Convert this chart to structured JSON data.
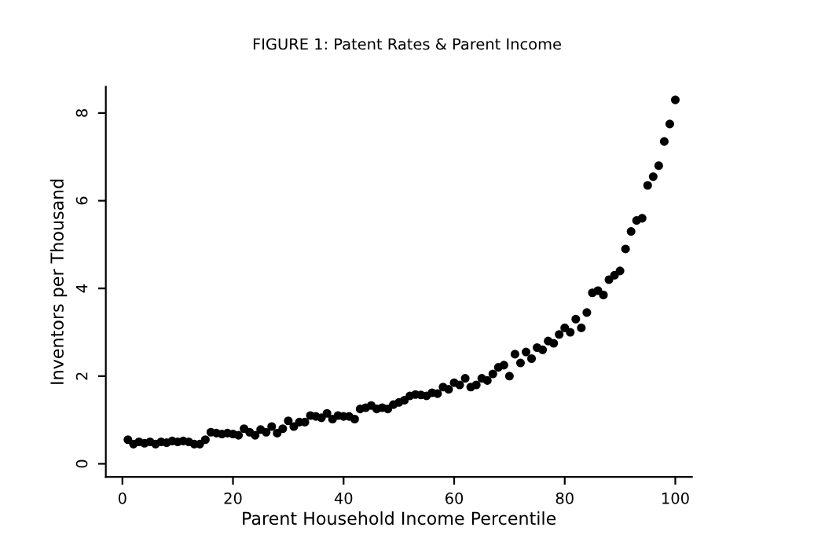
{
  "chart_data": {
    "type": "scatter",
    "title": "FIGURE 1: Patent Rates & Parent Income",
    "xlabel": "Parent Household Income Percentile",
    "ylabel": "Inventors per Thousand",
    "x": [
      1,
      2,
      3,
      4,
      5,
      6,
      7,
      8,
      9,
      10,
      11,
      12,
      13,
      14,
      15,
      16,
      17,
      18,
      19,
      20,
      21,
      22,
      23,
      24,
      25,
      26,
      27,
      28,
      29,
      30,
      31,
      32,
      33,
      34,
      35,
      36,
      37,
      38,
      39,
      40,
      41,
      42,
      43,
      44,
      45,
      46,
      47,
      48,
      49,
      50,
      51,
      52,
      53,
      54,
      55,
      56,
      57,
      58,
      59,
      60,
      61,
      62,
      63,
      64,
      65,
      66,
      67,
      68,
      69,
      70,
      71,
      72,
      73,
      74,
      75,
      76,
      77,
      78,
      79,
      80,
      81,
      82,
      83,
      84,
      85,
      86,
      87,
      88,
      89,
      90,
      91,
      92,
      93,
      94,
      95,
      96,
      97,
      98,
      99,
      100
    ],
    "series": [
      {
        "color": "#000000",
        "values": [
          0.55,
          0.45,
          0.5,
          0.47,
          0.5,
          0.45,
          0.5,
          0.48,
          0.52,
          0.5,
          0.52,
          0.5,
          0.45,
          0.45,
          0.55,
          0.72,
          0.7,
          0.68,
          0.7,
          0.68,
          0.65,
          0.8,
          0.72,
          0.65,
          0.78,
          0.72,
          0.85,
          0.7,
          0.8,
          0.98,
          0.85,
          0.95,
          0.95,
          1.1,
          1.08,
          1.05,
          1.15,
          1.02,
          1.1,
          1.08,
          1.08,
          1.02,
          1.25,
          1.28,
          1.33,
          1.25,
          1.28,
          1.25,
          1.35,
          1.4,
          1.45,
          1.55,
          1.58,
          1.57,
          1.55,
          1.62,
          1.6,
          1.75,
          1.7,
          1.85,
          1.8,
          1.95,
          1.75,
          1.8,
          1.95,
          1.9,
          2.05,
          2.2,
          2.25,
          2.0,
          2.5,
          2.3,
          2.55,
          2.4,
          2.65,
          2.6,
          2.8,
          2.75,
          2.95,
          3.1,
          3.0,
          3.3,
          3.1,
          3.45,
          3.9,
          3.95,
          3.85,
          4.2,
          4.3,
          4.4,
          4.9,
          5.3,
          5.55,
          5.6,
          6.35,
          6.55,
          6.8,
          7.35,
          7.75,
          8.3
        ]
      }
    ],
    "xlim": [
      -3,
      103
    ],
    "ylim": [
      -0.3,
      8.6
    ],
    "xticks": [
      0,
      20,
      40,
      60,
      80,
      100
    ],
    "yticks": [
      0,
      2,
      4,
      6,
      8
    ],
    "marker": "circle",
    "grid": false,
    "legend": false
  }
}
